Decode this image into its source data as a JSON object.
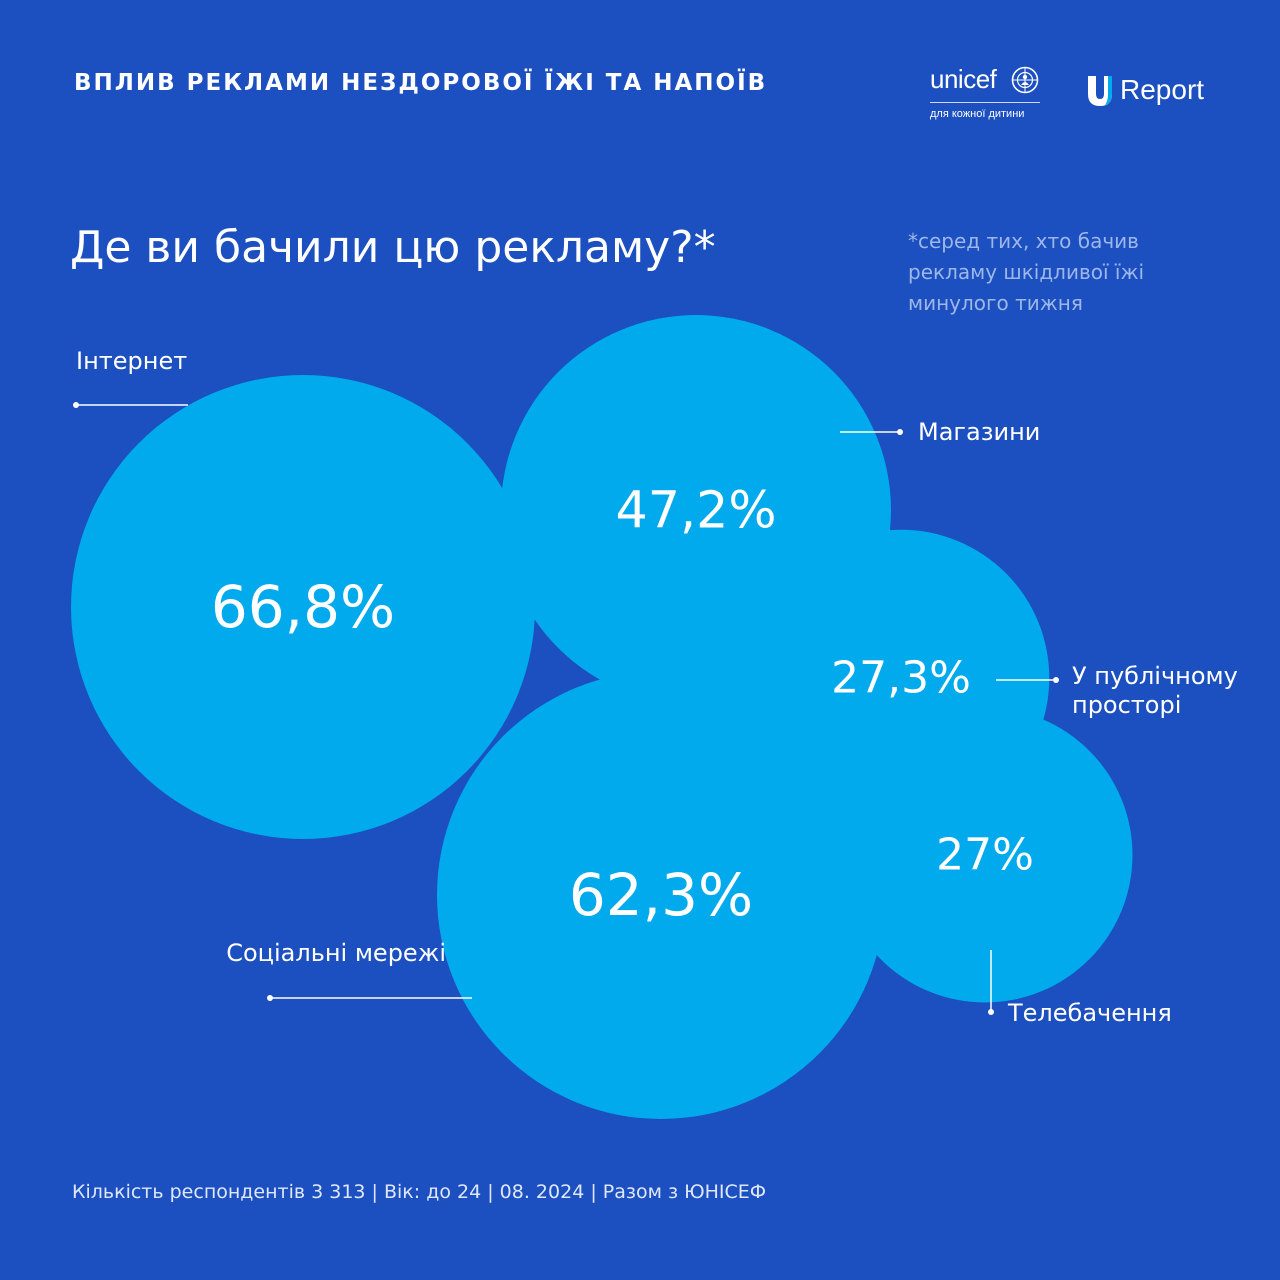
{
  "header": {
    "title": "ВПЛИВ РЕКЛАМИ НЕЗДОРОВОЇ ЇЖІ ТА НАПОЇВ",
    "unicef_logo_text": "unicef",
    "unicef_tagline": "для кожної дитини",
    "ureport_logo_text": "Report"
  },
  "question": "Де ви бачили цю рекламу?*",
  "footnote": "*серед тих, хто бачив рекламу шкідливої їжі минулого тижня",
  "footer": "Кількість респондентів 3 313 | Вік: до 24 | 08. 2024 | Разом з ЮНІСЕФ",
  "colors": {
    "background": "#1c4fbf",
    "bubble": "#00aaec",
    "text": "#ffffff",
    "footnote": "#9db7ea"
  },
  "chart_data": {
    "type": "bubble",
    "unit": "%",
    "categories": [
      "Інтернет",
      "Соціальні мережі",
      "Магазини",
      "У публічному просторі",
      "Телебачення"
    ],
    "values": [
      66.8,
      62.3,
      47.2,
      27.3,
      27
    ],
    "value_labels": [
      "66,8%",
      "62,3%",
      "47,2%",
      "27,3%",
      "27%"
    ]
  }
}
